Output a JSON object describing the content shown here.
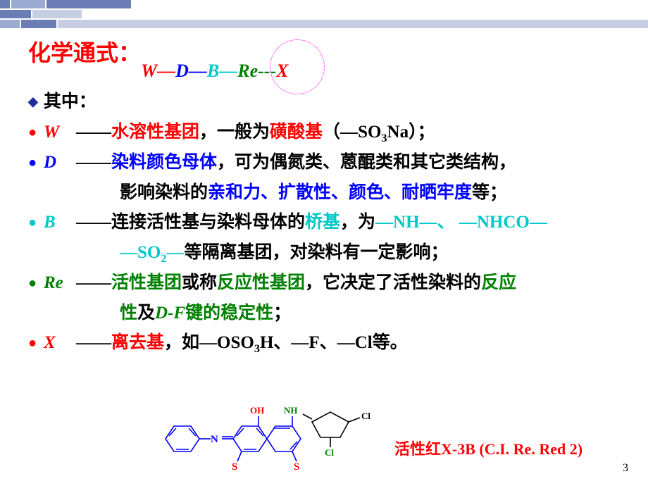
{
  "decor": {
    "c1": "#6a7eb5",
    "c2": "#9aaad0",
    "c3": "#c6cee4",
    "c4": "#e0e4f0"
  },
  "title": "化学通式：",
  "formula": {
    "W": {
      "t": "W",
      "c": "#ff0000"
    },
    "d1": "—",
    "D": {
      "t": "D",
      "c": "#0000ff"
    },
    "d2": "—",
    "B": {
      "t": "B",
      "c": "#00c8c8"
    },
    "d3": "—",
    "Re": {
      "t": "Re",
      "c": "#008000"
    },
    "d4": "---",
    "X": {
      "t": "X",
      "c": "#ff0000"
    }
  },
  "header2": "其中：",
  "items": [
    {
      "sym": "W",
      "symColor": "#ff0000",
      "segs": [
        {
          "t": "——",
          "c": "#000"
        },
        {
          "t": "水溶性基团",
          "c": "#ff0000"
        },
        {
          "t": "，一般为",
          "c": "#000"
        },
        {
          "t": "磺酸基",
          "c": "#ff0000"
        },
        {
          "t": "（",
          "c": "#000"
        },
        {
          "t": "—SO",
          "c": "#000",
          "tnr": true
        },
        {
          "t": "3",
          "c": "#000",
          "sub": true,
          "tnr": true
        },
        {
          "t": "Na",
          "c": "#000",
          "tnr": true
        },
        {
          "t": "）；",
          "c": "#000"
        }
      ]
    },
    {
      "sym": "D ",
      "symColor": "#0000ff",
      "segs": [
        {
          "t": "——",
          "c": "#000"
        },
        {
          "t": "染料颜色母体",
          "c": "#0000ff"
        },
        {
          "t": "，可为偶氮类、蒽醌类和其它类结构，",
          "c": "#000"
        }
      ],
      "cont": [
        {
          "t": "影响染料的",
          "c": "#000"
        },
        {
          "t": "亲和力、扩散性、颜色、耐晒牢度",
          "c": "#0000ff"
        },
        {
          "t": "等；",
          "c": "#000"
        }
      ]
    },
    {
      "sym": "B ",
      "symColor": "#00c8c8",
      "segs": [
        {
          "t": "——连接活性基与染料母体的",
          "c": "#000"
        },
        {
          "t": "桥基",
          "c": "#00c8c8"
        },
        {
          "t": "，为",
          "c": "#000"
        },
        {
          "t": "—NH—",
          "c": "#00c8c8",
          "tnr": true
        },
        {
          "t": "、",
          "c": "#00c8c8"
        },
        {
          "t": " —NHCO—",
          "c": "#00c8c8",
          "tnr": true
        }
      ],
      "cont": [
        {
          "t": "—SO",
          "c": "#00c8c8",
          "tnr": true
        },
        {
          "t": "2",
          "c": "#00c8c8",
          "sub": true,
          "tnr": true
        },
        {
          "t": "—",
          "c": "#00c8c8",
          "tnr": true
        },
        {
          "t": "等隔离基团，对染料有一定影响；",
          "c": "#000"
        }
      ]
    },
    {
      "sym": "Re",
      "symColor": "#008000",
      "segs": [
        {
          "t": "——",
          "c": "#000"
        },
        {
          "t": "活性基团",
          "c": "#008000"
        },
        {
          "t": "或称",
          "c": "#000"
        },
        {
          "t": "反应性基团",
          "c": "#008000"
        },
        {
          "t": "，它决定了活性染料的",
          "c": "#000"
        },
        {
          "t": "反应",
          "c": "#008000"
        }
      ],
      "cont": [
        {
          "t": "性",
          "c": "#008000"
        },
        {
          "t": "及",
          "c": "#000"
        },
        {
          "t": "D-F",
          "c": "#008000",
          "tnr": true,
          "it": true
        },
        {
          "t": "键的稳定性",
          "c": "#008000"
        },
        {
          "t": "；",
          "c": "#000"
        }
      ]
    },
    {
      "sym": "X ",
      "symColor": "#ff0000",
      "segs": [
        {
          "t": "——",
          "c": "#000"
        },
        {
          "t": "离去基",
          "c": "#ff0000"
        },
        {
          "t": "，如",
          "c": "#000"
        },
        {
          "t": "—OSO",
          "c": "#000",
          "tnr": true
        },
        {
          "t": "3",
          "c": "#000",
          "sub": true,
          "tnr": true
        },
        {
          "t": "H",
          "c": "#000",
          "tnr": true
        },
        {
          "t": "、",
          "c": "#000"
        },
        {
          "t": "—F",
          "c": "#000",
          "tnr": true
        },
        {
          "t": "、",
          "c": "#000"
        },
        {
          "t": "—Cl",
          "c": "#000",
          "tnr": true
        },
        {
          "t": "等。",
          "c": "#000"
        }
      ]
    }
  ],
  "structure": {
    "lineColor": "#0000ff",
    "labels": {
      "OH": {
        "t": "OH",
        "c": "#ff0000"
      },
      "NH": {
        "t": "NH",
        "c": "#008000"
      },
      "Cl1": {
        "t": "Cl",
        "c": "#000"
      },
      "Cl2": {
        "t": "Cl",
        "c": "#008000"
      },
      "N": {
        "t": "N",
        "c": "#0000ff"
      },
      "N2": {
        "t": "N",
        "c": "#0000ff"
      },
      "S1": {
        "t": "S",
        "c": "#ff0000"
      },
      "S2": {
        "t": "S",
        "c": "#ff0000"
      }
    }
  },
  "caption": "活性红X-3B (C.I. Re. Red 2)",
  "page": "3"
}
